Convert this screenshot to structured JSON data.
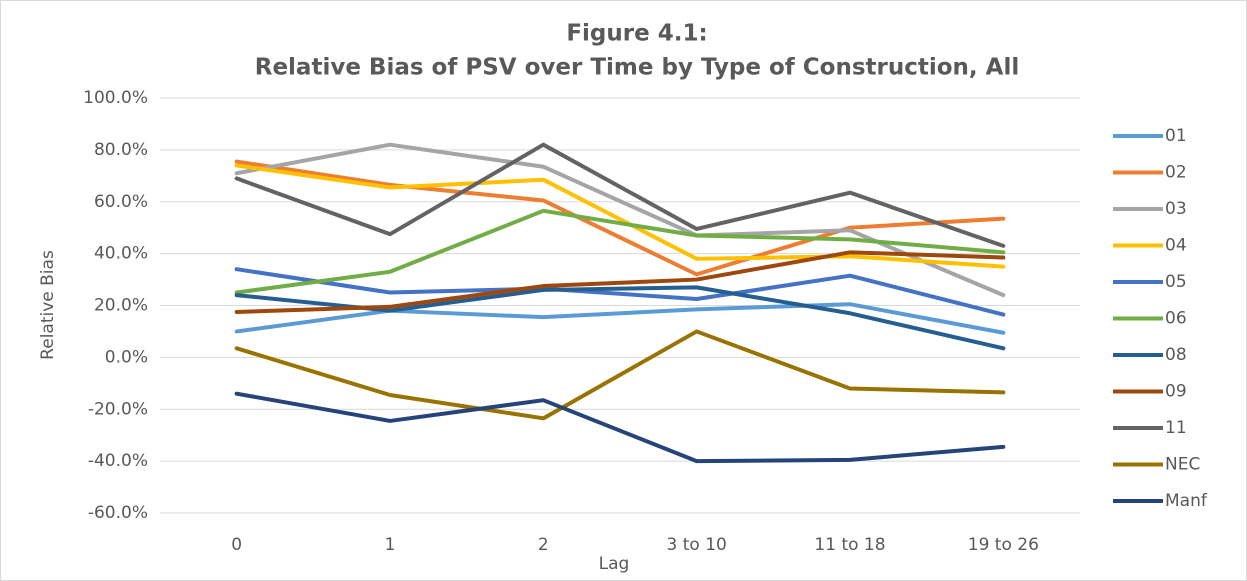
{
  "chart_data": {
    "type": "line",
    "title": "Figure 4.1:",
    "subtitle": "Relative Bias of PSV over Time by Type of Construction, All",
    "x_label": "Lag",
    "y_label": "Relative Bias",
    "categories": [
      "0",
      "1",
      "2",
      "3 to 10",
      "11 to 18",
      "19 to 26"
    ],
    "ylim": [
      -60,
      100
    ],
    "yticks": [
      {
        "value": -60,
        "label": "-60.0%"
      },
      {
        "value": -40,
        "label": "-40.0%"
      },
      {
        "value": -20,
        "label": "-20.0%"
      },
      {
        "value": 0,
        "label": "0.0%"
      },
      {
        "value": 20,
        "label": "20.0%"
      },
      {
        "value": 40,
        "label": "40.0%"
      },
      {
        "value": 60,
        "label": "60.0%"
      },
      {
        "value": 80,
        "label": "80.0%"
      },
      {
        "value": 100,
        "label": "100.0%"
      }
    ],
    "grid": true,
    "legend": "right",
    "series": [
      {
        "name": "01",
        "color": "#5b9bd5",
        "values": [
          10,
          18,
          15.5,
          18.5,
          20.5,
          9.5
        ]
      },
      {
        "name": "02",
        "color": "#ed7d31",
        "values": [
          75.5,
          66.5,
          60.5,
          32,
          50,
          53.5
        ]
      },
      {
        "name": "03",
        "color": "#a5a5a5",
        "values": [
          71,
          82,
          73.5,
          47,
          49,
          24
        ]
      },
      {
        "name": "04",
        "color": "#ffc000",
        "values": [
          74,
          65.5,
          68.5,
          38,
          39,
          35
        ]
      },
      {
        "name": "05",
        "color": "#4472c4",
        "values": [
          34,
          25,
          26.5,
          22.5,
          31.5,
          16.5
        ]
      },
      {
        "name": "06",
        "color": "#70ad47",
        "values": [
          25,
          33,
          56.5,
          47,
          45.5,
          40.5
        ]
      },
      {
        "name": "08",
        "color": "#255e91",
        "values": [
          24,
          18,
          26,
          27,
          17,
          3.5
        ]
      },
      {
        "name": "09",
        "color": "#9e480e",
        "values": [
          17.5,
          19.5,
          27.5,
          30,
          40.5,
          38.5
        ]
      },
      {
        "name": "11",
        "color": "#636363",
        "values": [
          69,
          47.5,
          82,
          49.5,
          63.5,
          43
        ]
      },
      {
        "name": "NEC",
        "color": "#997300",
        "values": [
          3.5,
          -14.5,
          -23.5,
          10,
          -12,
          -13.5
        ]
      },
      {
        "name": "Manf",
        "color": "#264478",
        "values": [
          -14,
          -24.5,
          -16.5,
          -40,
          -39.5,
          -34.5
        ]
      }
    ]
  }
}
